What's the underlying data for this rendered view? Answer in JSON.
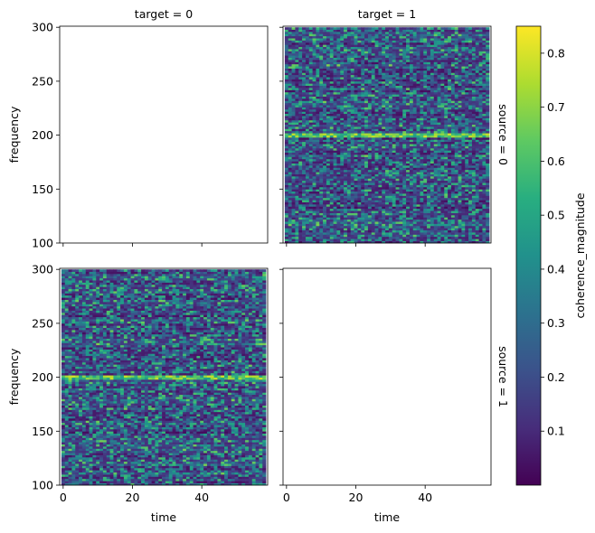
{
  "chart_data": {
    "type": "heatmap",
    "layout": "facet-grid 2x2",
    "col_facet_titles": [
      "target = 0",
      "target = 1"
    ],
    "row_facet_titles": [
      "source = 0",
      "source = 1"
    ],
    "xlabel": "time",
    "ylabel": "frequency",
    "xlim": [
      -1,
      59
    ],
    "ylim": [
      100,
      301
    ],
    "x_ticks": [
      0,
      20,
      40
    ],
    "y_ticks": [
      100,
      150,
      200,
      250,
      300
    ],
    "time_steps": 59,
    "frequency_bins": 100,
    "frequency_range": [
      100,
      300
    ],
    "panels": [
      {
        "source": 0,
        "target": 0,
        "has_data": false
      },
      {
        "source": 0,
        "target": 1,
        "has_data": true,
        "peak_frequency": 200,
        "peak_magnitude": 0.8,
        "background_mean": 0.15
      },
      {
        "source": 1,
        "target": 0,
        "has_data": true,
        "peak_frequency": 200,
        "peak_magnitude": 0.8,
        "background_mean": 0.15
      },
      {
        "source": 1,
        "target": 1,
        "has_data": false
      }
    ],
    "colorbar": {
      "label": "coherence_magnitude",
      "colormap": "viridis",
      "range": [
        0.0,
        0.85
      ],
      "ticks": [
        0.1,
        0.2,
        0.3,
        0.4,
        0.5,
        0.6,
        0.7,
        0.8
      ]
    }
  }
}
